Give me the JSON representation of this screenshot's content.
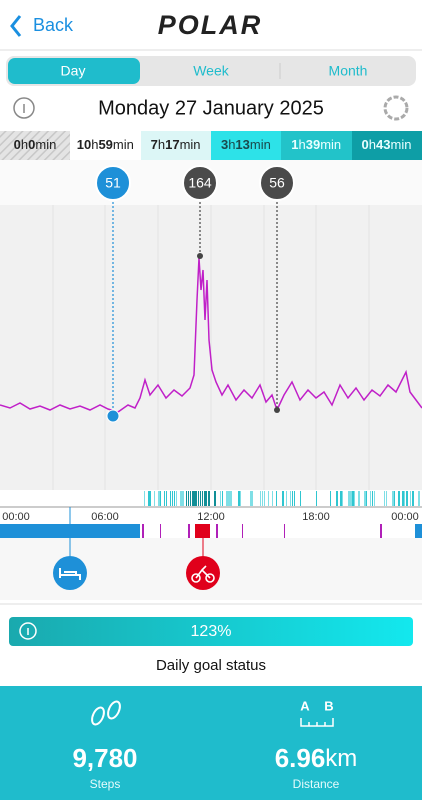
{
  "header": {
    "back": "Back",
    "brand": "POLAR"
  },
  "tabs": [
    "Day",
    "Week",
    "Month"
  ],
  "date": "Monday 27 January 2025",
  "activity_levels": [
    [
      "0",
      "h",
      "0",
      "min"
    ],
    [
      "10",
      "h",
      "59",
      "min"
    ],
    [
      "7",
      "h",
      "17",
      "min"
    ],
    [
      "3",
      "h",
      "13",
      "min"
    ],
    [
      "1",
      "h",
      "39",
      "min"
    ],
    [
      "0",
      "h",
      "43",
      "min"
    ]
  ],
  "heart_rate_markers": [
    "51",
    "164",
    "56"
  ],
  "time_axis": [
    "00:00",
    "06:00",
    "12:00",
    "18:00",
    "00:00"
  ],
  "goal": {
    "value": "123%",
    "label": "Daily goal status"
  },
  "stats": {
    "steps": {
      "value": "9,780",
      "label": "Steps"
    },
    "distance": {
      "icon": [
        "A",
        "B"
      ],
      "value": "6.96",
      "unit": "km",
      "label": "Distance"
    }
  }
}
